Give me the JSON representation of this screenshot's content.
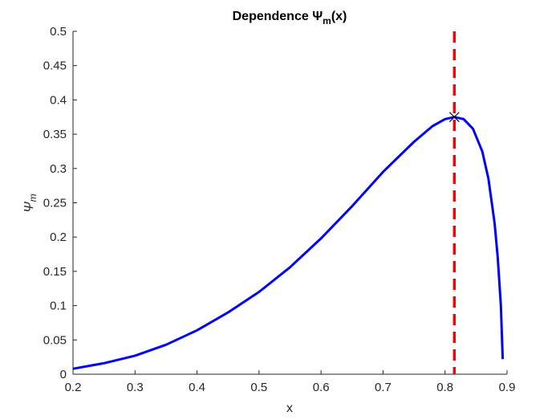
{
  "chart_data": {
    "type": "line",
    "title": {
      "prefix": "Dependence ",
      "symbol": "Ψ",
      "subscript": "m",
      "suffix": "(x)"
    },
    "xlabel": "x",
    "ylabel": {
      "symbol": "Ψ",
      "subscript": "m"
    },
    "xlim": [
      0.2,
      0.9
    ],
    "ylim": [
      0,
      0.5
    ],
    "x_ticks": [
      0.2,
      0.3,
      0.4,
      0.5,
      0.6,
      0.7,
      0.8,
      0.9
    ],
    "x_tick_labels": [
      "0.2",
      "0.3",
      "0.4",
      "0.5",
      "0.6",
      "0.7",
      "0.8",
      "0.9"
    ],
    "y_ticks": [
      0,
      0.05,
      0.1,
      0.15,
      0.2,
      0.25,
      0.3,
      0.35,
      0.4,
      0.45,
      0.5
    ],
    "y_tick_labels": [
      "0",
      "0.05",
      "0.1",
      "0.15",
      "0.2",
      "0.25",
      "0.3",
      "0.35",
      "0.4",
      "0.45",
      "0.5"
    ],
    "grid": false,
    "box": "open top/right",
    "series": [
      {
        "color": "#0000ff",
        "style": "solid",
        "x": [
          0.2,
          0.25,
          0.3,
          0.35,
          0.4,
          0.45,
          0.5,
          0.55,
          0.6,
          0.65,
          0.7,
          0.75,
          0.78,
          0.8,
          0.815,
          0.83,
          0.845,
          0.86,
          0.87,
          0.88,
          0.885,
          0.89,
          0.893
        ],
        "y": [
          0.008,
          0.016,
          0.027,
          0.043,
          0.064,
          0.09,
          0.12,
          0.156,
          0.198,
          0.245,
          0.295,
          0.339,
          0.362,
          0.372,
          0.375,
          0.372,
          0.358,
          0.325,
          0.285,
          0.22,
          0.17,
          0.1,
          0.022
        ]
      }
    ],
    "vertical_line": {
      "x": 0.815,
      "color": "#ff0000",
      "style": "dashed"
    },
    "marker": {
      "x": 0.815,
      "y": 0.375,
      "symbol": "x",
      "color": "#000000"
    }
  }
}
